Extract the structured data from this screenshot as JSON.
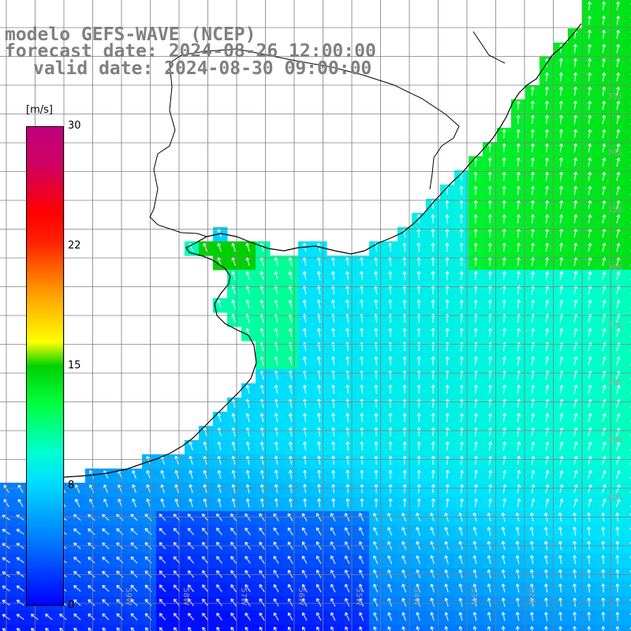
{
  "title": {
    "line1": "modelo GEFS-WAVE (NCEP)",
    "line2": "forecast date: 2024-08-26 12:00:00",
    "line3": "valid date: 2024-08-30 09:00:00"
  },
  "colorbar": {
    "unit": "[m/s]",
    "ticks": [
      "30",
      "22",
      "15",
      "8",
      "0"
    ],
    "min": 0,
    "max": 30,
    "colors": [
      "#0000ff",
      "#0080ff",
      "#00e0ff",
      "#00ffd0",
      "#00ff40",
      "#00d000",
      "#ffff00",
      "#ffa000",
      "#ff2000",
      "#ff0000",
      "#c00080"
    ]
  },
  "map": {
    "lat_labels": [
      "33S",
      "34S",
      "35S",
      "36S",
      "37S",
      "38S",
      "39S",
      "40S"
    ],
    "lon_labels": [
      "59W",
      "58W",
      "57W",
      "56W",
      "55W",
      "54W",
      "53W",
      "52W"
    ],
    "land_color": "#ffffff",
    "grid_color": "#808080",
    "coast_color": "#000000",
    "arrow_color": "#ffffff"
  }
}
